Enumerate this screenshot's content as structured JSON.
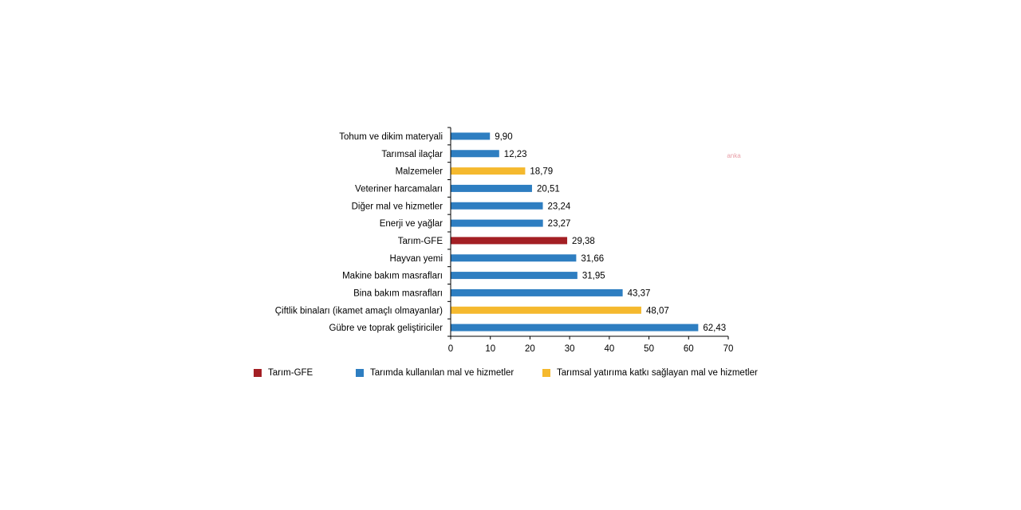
{
  "chart_data": {
    "type": "bar",
    "orientation": "horizontal",
    "categories": [
      "Tohum ve dikim materyali",
      "Tarımsal ilaçlar",
      "Malzemeler",
      "Veteriner harcamaları",
      "Diğer mal ve hizmetler",
      "Enerji ve yağlar",
      "Tarım-GFE",
      "Hayvan yemi",
      "Makine bakım masrafları",
      "Bina bakım masrafları",
      "Çiftlik binaları (ikamet amaçlı olmayanlar)",
      "Gübre ve toprak geliştiriciler"
    ],
    "values": [
      9.9,
      12.23,
      18.79,
      20.51,
      23.24,
      23.27,
      29.38,
      31.66,
      31.95,
      43.37,
      48.07,
      62.43
    ],
    "value_labels": [
      "9,90",
      "12,23",
      "18,79",
      "20,51",
      "23,24",
      "23,27",
      "29,38",
      "31,66",
      "31,95",
      "43,37",
      "48,07",
      "62,43"
    ],
    "bar_groups": [
      "used",
      "used",
      "investment",
      "used",
      "used",
      "used",
      "gfe",
      "used",
      "used",
      "used",
      "investment",
      "used"
    ],
    "xlim": [
      0,
      70
    ],
    "xticks": [
      0,
      10,
      20,
      30,
      40,
      50,
      60,
      70
    ],
    "grid": false,
    "legend_position": "bottom",
    "legend": [
      {
        "key": "gfe",
        "label": "Tarım-GFE",
        "color": "#a31f24"
      },
      {
        "key": "used",
        "label": "Tarımda kullanılan mal ve hizmetler",
        "color": "#2e7ec1"
      },
      {
        "key": "investment",
        "label": "Tarımsal yatırıma katkı sağlayan mal ve hizmetler",
        "color": "#f5b92e"
      }
    ]
  },
  "watermark": "anka"
}
